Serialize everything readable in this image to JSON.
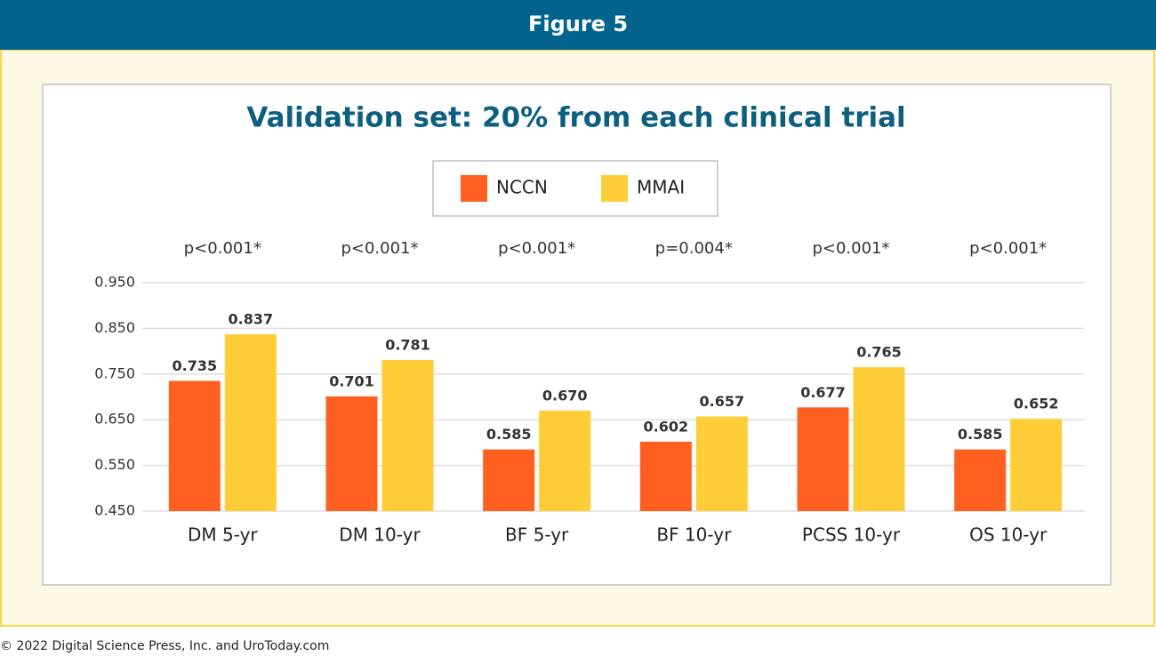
{
  "header": {
    "title": "Figure 5"
  },
  "footer": {
    "text": "© 2022 Digital Science Press, Inc. and UroToday.com"
  },
  "chart_data": {
    "type": "bar",
    "title": "Validation set: 20% from each clinical trial",
    "categories": [
      "DM 5-yr",
      "DM 10-yr",
      "BF 5-yr",
      "BF 10-yr",
      "PCSS 10-yr",
      "OS 10-yr"
    ],
    "annotations": [
      "p<0.001*",
      "p<0.001*",
      "p<0.001*",
      "p=0.004*",
      "p<0.001*",
      "p<0.001*"
    ],
    "series": [
      {
        "name": "NCCN",
        "color": "#ff5f1f",
        "values": [
          0.735,
          0.701,
          0.585,
          0.602,
          0.677,
          0.585
        ],
        "value_labels": [
          "0.735",
          "0.701",
          "0.585",
          "0.602",
          "0.677",
          "0.585"
        ]
      },
      {
        "name": "MMAI",
        "color": "#ffcd38",
        "values": [
          0.837,
          0.781,
          0.67,
          0.657,
          0.765,
          0.652
        ],
        "value_labels": [
          "0.837",
          "0.781",
          "0.670",
          "0.657",
          "0.765",
          "0.652"
        ]
      }
    ],
    "ylim": [
      0.45,
      0.95
    ],
    "yticks": [
      {
        "value": 0.45,
        "label": "0.450"
      },
      {
        "value": 0.55,
        "label": "0.550"
      },
      {
        "value": 0.65,
        "label": "0.650"
      },
      {
        "value": 0.75,
        "label": "0.750"
      },
      {
        "value": 0.85,
        "label": "0.850"
      },
      {
        "value": 0.95,
        "label": "0.950"
      }
    ],
    "grid": true,
    "legend": "top"
  }
}
